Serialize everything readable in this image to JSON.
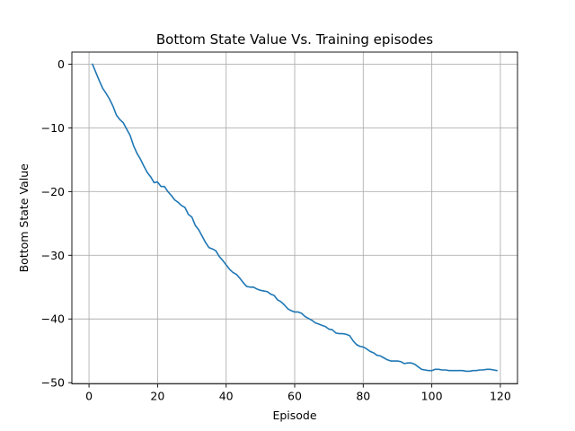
{
  "chart_data": {
    "type": "line",
    "title": "Bottom State Value Vs. Training episodes",
    "xlabel": "Episode",
    "ylabel": "Bottom State Value",
    "xlim": [
      -5,
      125
    ],
    "ylim": [
      -50.2,
      1.9
    ],
    "xticks": [
      0,
      20,
      40,
      60,
      80,
      100,
      120
    ],
    "yticks": [
      0,
      -10,
      -20,
      -30,
      -40,
      -50
    ],
    "xtick_labels": [
      "0",
      "20",
      "40",
      "60",
      "80",
      "100",
      "120"
    ],
    "ytick_labels": [
      "0",
      "−10",
      "−20",
      "−30",
      "−40",
      "−50"
    ],
    "grid": true,
    "legend": "none",
    "series": [
      {
        "color": "#1f77b4",
        "x": [
          1,
          2,
          3,
          4,
          5,
          6,
          7,
          8,
          9,
          10,
          11,
          12,
          13,
          14,
          15,
          16,
          17,
          18,
          19,
          20,
          21,
          22,
          23,
          24,
          25,
          26,
          27,
          28,
          29,
          30,
          31,
          32,
          33,
          34,
          35,
          36,
          37,
          38,
          39,
          40,
          41,
          42,
          43,
          44,
          45,
          46,
          47,
          48,
          49,
          50,
          51,
          52,
          53,
          54,
          55,
          56,
          57,
          58,
          59,
          60,
          61,
          62,
          63,
          64,
          65,
          66,
          67,
          68,
          69,
          70,
          71,
          72,
          73,
          74,
          75,
          76,
          77,
          78,
          79,
          80,
          81,
          82,
          83,
          84,
          85,
          86,
          87,
          88,
          89,
          90,
          91,
          92,
          93,
          94,
          95,
          96,
          97,
          98,
          99,
          100,
          101,
          102,
          103,
          104,
          105,
          106,
          107,
          108,
          109,
          110,
          111,
          112,
          113,
          114,
          115,
          116,
          117,
          118,
          119
        ],
        "y": [
          0,
          -1.3,
          -2.6,
          -3.8,
          -4.6,
          -5.5,
          -6.6,
          -8,
          -8.7,
          -9.2,
          -10.2,
          -11.2,
          -12.8,
          -14,
          -14.9,
          -16,
          -17,
          -17.7,
          -18.6,
          -18.5,
          -19.2,
          -19.2,
          -20,
          -20.6,
          -21.3,
          -21.7,
          -22.2,
          -22.5,
          -23.6,
          -24,
          -25.3,
          -26,
          -27,
          -28,
          -28.8,
          -29,
          -29.3,
          -30.2,
          -30.8,
          -31.5,
          -32.2,
          -32.7,
          -33,
          -33.6,
          -34.3,
          -34.9,
          -35,
          -35,
          -35.3,
          -35.5,
          -35.6,
          -35.7,
          -36.1,
          -36.3,
          -37,
          -37.3,
          -37.8,
          -38.4,
          -38.7,
          -38.9,
          -38.9,
          -39.1,
          -39.6,
          -39.9,
          -40.2,
          -40.6,
          -40.8,
          -41,
          -41.2,
          -41.6,
          -41.7,
          -42.2,
          -42.3,
          -42.3,
          -42.4,
          -42.6,
          -43.4,
          -44,
          -44.3,
          -44.4,
          -44.7,
          -45.1,
          -45.3,
          -45.7,
          -45.8,
          -46.1,
          -46.4,
          -46.6,
          -46.6,
          -46.6,
          -46.7,
          -47,
          -46.9,
          -46.9,
          -47.1,
          -47.5,
          -47.9,
          -48,
          -48.1,
          -48.1,
          -47.9,
          -47.9,
          -48,
          -48,
          -48.1,
          -48.1,
          -48.1,
          -48.1,
          -48.1,
          -48.2,
          -48.2,
          -48.1,
          -48.1,
          -48,
          -48,
          -47.9,
          -47.9,
          -48,
          -48.1
        ]
      }
    ]
  }
}
